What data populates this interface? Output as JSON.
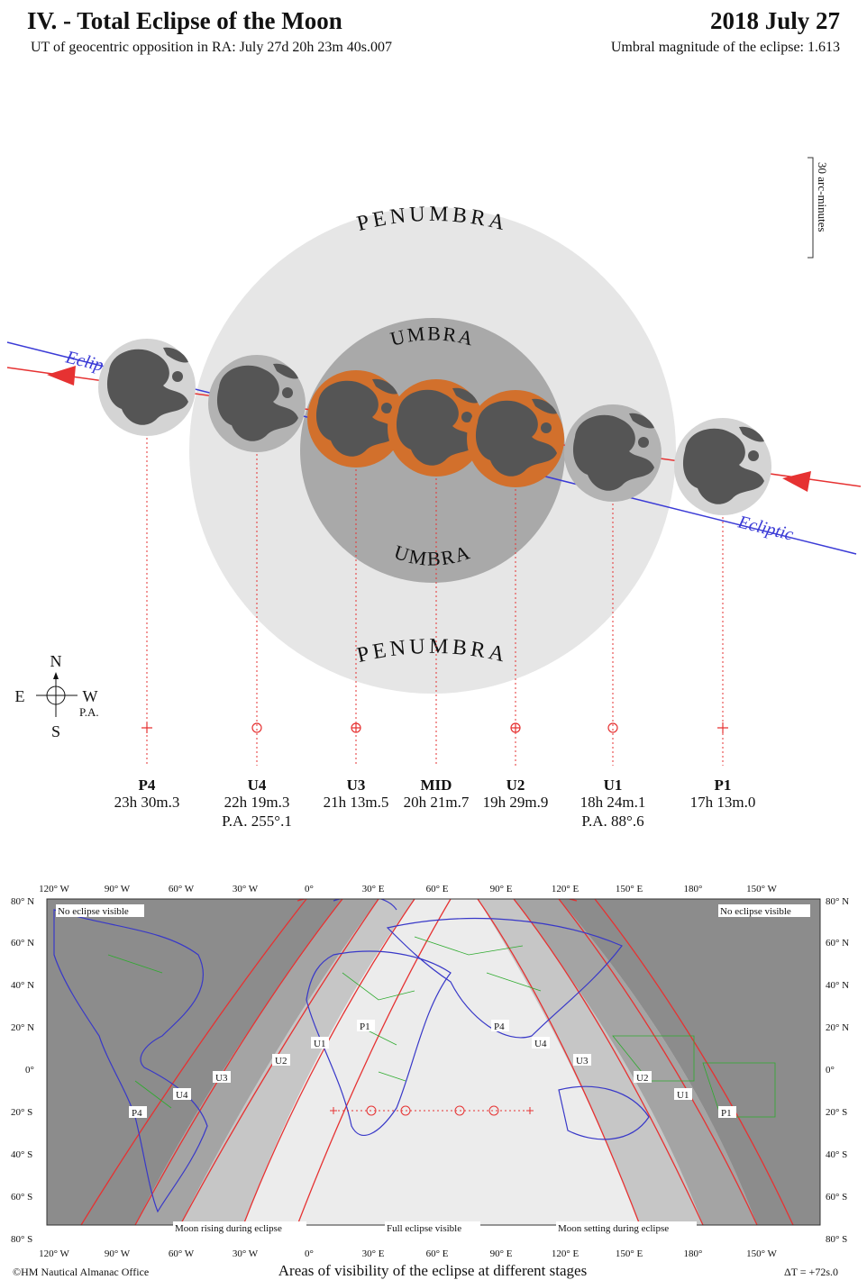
{
  "header": {
    "title": "IV. - Total Eclipse of the Moon",
    "subtitle": "UT of geocentric opposition in RA: July 27d 20h 23m 40s.007",
    "date": "2018 July 27",
    "magnitude": "Umbral magnitude of the eclipse: 1.613"
  },
  "diagram": {
    "penumbra_label": "PENUMBRA",
    "umbra_label": "UMBRA",
    "ecliptic_label": "Ecliptic",
    "ecliptic_label_clipped": "Eclip",
    "scale_label": "30 arc-minutes",
    "compass": {
      "n": "N",
      "s": "S",
      "e": "E",
      "w": "W",
      "pa": "P.A."
    },
    "colors": {
      "penumbra": "#e6e6e6",
      "umbra": "#a9a9a9",
      "eclipsed_moon": "#d2702c",
      "moon": "#d4d4d4",
      "maria": "#555555",
      "ecliptic": "#3b3bd6",
      "path": "#e63232"
    }
  },
  "contacts": [
    {
      "id": "P4",
      "time": "23h 30m.3",
      "pa": ""
    },
    {
      "id": "U4",
      "time": "22h 19m.3",
      "pa": "P.A. 255°.1"
    },
    {
      "id": "U3",
      "time": "21h 13m.5",
      "pa": ""
    },
    {
      "id": "MID",
      "time": "20h 21m.7",
      "pa": ""
    },
    {
      "id": "U2",
      "time": "19h 29m.9",
      "pa": ""
    },
    {
      "id": "U1",
      "time": "18h 24m.1",
      "pa": "P.A. 88°.6"
    },
    {
      "id": "P1",
      "time": "17h 13m.0",
      "pa": ""
    }
  ],
  "map": {
    "top_lon_labels": [
      "120° W",
      "90° W",
      "60° W",
      "30° W",
      "0°",
      "30° E",
      "60° E",
      "90° E",
      "120° E",
      "150° E",
      "180°",
      "150° W"
    ],
    "lat_labels": [
      "80° N",
      "60° N",
      "40° N",
      "20° N",
      "0°",
      "20° S",
      "40° S",
      "60° S",
      "80° S"
    ],
    "no_eclipse_left": "No eclipse visible",
    "no_eclipse_right": "No eclipse visible",
    "moon_rising": "Moon rising during eclipse",
    "full_visible": "Full eclipse visible",
    "moon_setting": "Moon setting during eclipse",
    "curve_labels": [
      "P4",
      "U4",
      "U3",
      "U2",
      "U1",
      "P1",
      "U1",
      "U2",
      "U3",
      "U4",
      "P4",
      "P1"
    ],
    "caption": "Areas of visibility of the eclipse at different stages",
    "copyright": "©HM Nautical Almanac Office",
    "delta_t": "ΔT = +72s.0"
  }
}
